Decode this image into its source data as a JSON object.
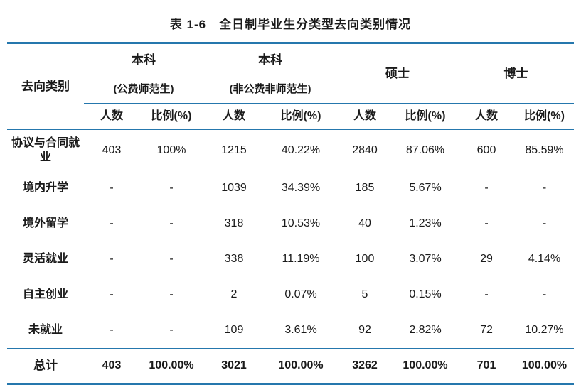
{
  "title": "表 1-6　全日制毕业生分类型去向类别情况",
  "colors": {
    "line_blue": "#2577AD",
    "text": "#1A1A1A",
    "background": "#FFFFFF"
  },
  "table": {
    "corner": "去向类别",
    "groups": [
      {
        "title": "本科",
        "subtitle": "(公费师范生)"
      },
      {
        "title": "本科",
        "subtitle": "(非公费非师范生)"
      },
      {
        "title": "硕士",
        "subtitle": ""
      },
      {
        "title": "博士",
        "subtitle": ""
      }
    ],
    "sub_headers": [
      "人数",
      "比例(%)"
    ],
    "rows": [
      {
        "label": "协议与合同就业",
        "values": [
          "403",
          "100%",
          "1215",
          "40.22%",
          "2840",
          "87.06%",
          "600",
          "85.59%"
        ]
      },
      {
        "label": "境内升学",
        "values": [
          "-",
          "-",
          "1039",
          "34.39%",
          "185",
          "5.67%",
          "-",
          "-"
        ]
      },
      {
        "label": "境外留学",
        "values": [
          "-",
          "-",
          "318",
          "10.53%",
          "40",
          "1.23%",
          "-",
          "-"
        ]
      },
      {
        "label": "灵活就业",
        "values": [
          "-",
          "-",
          "338",
          "11.19%",
          "100",
          "3.07%",
          "29",
          "4.14%"
        ]
      },
      {
        "label": "自主创业",
        "values": [
          "-",
          "-",
          "2",
          "0.07%",
          "5",
          "0.15%",
          "-",
          "-"
        ]
      },
      {
        "label": "未就业",
        "values": [
          "-",
          "-",
          "109",
          "3.61%",
          "92",
          "2.82%",
          "72",
          "10.27%"
        ]
      }
    ],
    "total": {
      "label": "总计",
      "values": [
        "403",
        "100.00%",
        "3021",
        "100.00%",
        "3262",
        "100.00%",
        "701",
        "100.00%"
      ]
    }
  }
}
